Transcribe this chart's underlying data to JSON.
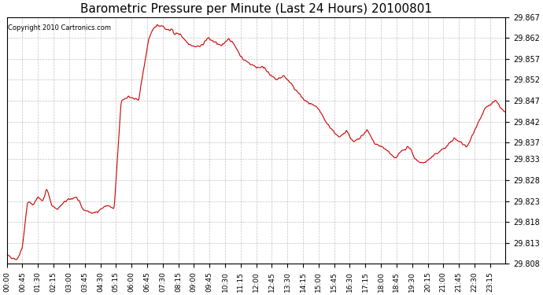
{
  "title": "Barometric Pressure per Minute (Last 24 Hours) 20100801",
  "copyright": "Copyright 2010 Cartronics.com",
  "line_color": "#cc0000",
  "background_color": "#ffffff",
  "grid_color": "#aaaaaa",
  "ylim": [
    29.808,
    29.867
  ],
  "yticks": [
    29.808,
    29.813,
    29.818,
    29.823,
    29.828,
    29.833,
    29.837,
    29.842,
    29.847,
    29.852,
    29.857,
    29.862,
    29.867
  ],
  "xtick_labels": [
    "00:00",
    "00:45",
    "01:30",
    "02:15",
    "03:00",
    "03:45",
    "04:30",
    "05:15",
    "06:00",
    "06:45",
    "07:30",
    "08:15",
    "09:00",
    "09:45",
    "10:30",
    "11:15",
    "12:00",
    "12:45",
    "13:30",
    "14:15",
    "15:00",
    "15:45",
    "16:30",
    "17:15",
    "18:00",
    "18:45",
    "19:30",
    "20:15",
    "21:00",
    "21:45",
    "22:30",
    "23:15"
  ],
  "keypoints_x": [
    0,
    30,
    45,
    60,
    75,
    90,
    105,
    115,
    130,
    145,
    170,
    200,
    220,
    250,
    270,
    290,
    310,
    330,
    350,
    380,
    410,
    430,
    450,
    460,
    475,
    485,
    500,
    510,
    520,
    540,
    560,
    580,
    600,
    620,
    640,
    660,
    680,
    700,
    720,
    745,
    760,
    780,
    800,
    820,
    840,
    860,
    880,
    900,
    920,
    940,
    960,
    980,
    1000,
    1020,
    1040,
    1060,
    1080,
    1100,
    1120,
    1140,
    1160,
    1180,
    1200,
    1220,
    1250,
    1270,
    1290,
    1310,
    1330,
    1350,
    1380,
    1410,
    1439
  ],
  "keypoints_y": [
    29.81,
    29.809,
    29.812,
    29.823,
    29.822,
    29.824,
    29.823,
    29.826,
    29.822,
    29.821,
    29.823,
    29.824,
    29.821,
    29.82,
    29.821,
    29.822,
    29.821,
    29.847,
    29.848,
    29.847,
    29.862,
    29.865,
    29.865,
    29.864,
    29.864,
    29.863,
    29.863,
    29.862,
    29.861,
    29.86,
    29.86,
    29.862,
    29.861,
    29.86,
    29.862,
    29.86,
    29.857,
    29.856,
    29.855,
    29.855,
    29.853,
    29.852,
    29.853,
    29.851,
    29.849,
    29.847,
    29.846,
    29.845,
    29.842,
    29.84,
    29.838,
    29.84,
    29.837,
    29.838,
    29.84,
    29.837,
    29.836,
    29.835,
    29.833,
    29.835,
    29.836,
    29.833,
    29.832,
    29.833,
    29.835,
    29.836,
    29.838,
    29.837,
    29.836,
    29.84,
    29.845,
    29.847,
    29.844
  ]
}
